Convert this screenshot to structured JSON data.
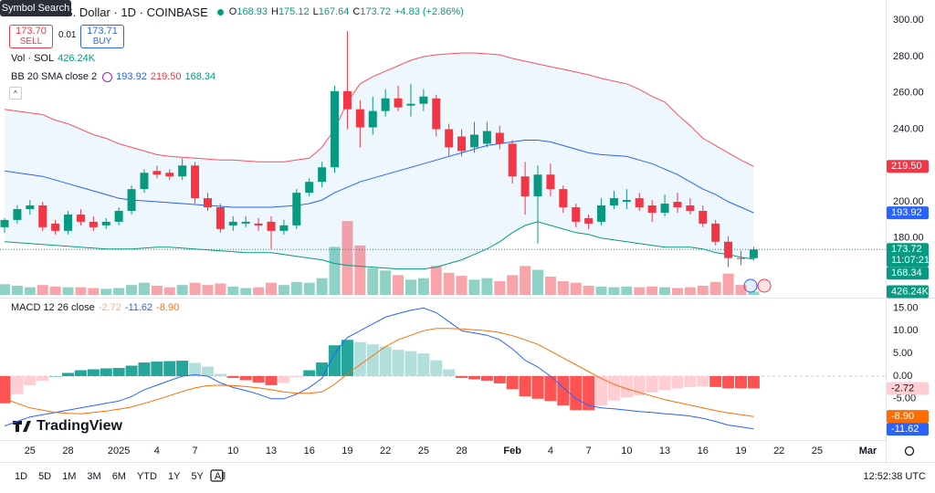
{
  "ui": {
    "symbol_search": "Symbol Search",
    "symbol": "U.S. Dollar · 1D · COINBASE",
    "ohlc_letters": [
      "O",
      "H",
      "L",
      "C"
    ],
    "change": "+4.83 (+2.86%)",
    "sell_price": "173.70",
    "sell": "SELL",
    "spread": "0.01",
    "buy_price": "173.71",
    "buy": "BUY",
    "countdown": "11:07:21",
    "logo": "TradingView",
    "ranges": [
      "1D",
      "5D",
      "1M",
      "3M",
      "6M",
      "YTD",
      "1Y",
      "5Y",
      "All"
    ],
    "clock": "12:52:38 UTC"
  },
  "chart_data": {
    "type": "candlestick",
    "categories": [
      null,
      null,
      "25",
      null,
      null,
      "28",
      null,
      null,
      null,
      "2025",
      null,
      null,
      "4",
      null,
      null,
      "7",
      null,
      null,
      "10",
      null,
      null,
      "13",
      null,
      null,
      "16",
      null,
      null,
      "19",
      null,
      null,
      "22",
      null,
      null,
      "25",
      null,
      null,
      "28",
      null,
      null,
      null,
      "Feb",
      null,
      null,
      "4",
      null,
      null,
      "7",
      null,
      null,
      "10",
      null,
      null,
      "13",
      null,
      null,
      "16",
      null,
      null,
      "19",
      null
    ],
    "future_ticks": [
      "22",
      "25",
      "Mar"
    ],
    "open": [
      186,
      190,
      196,
      198,
      188,
      184,
      193,
      189,
      187,
      189,
      195,
      207,
      217,
      216,
      214,
      220,
      202,
      197,
      187,
      188,
      188,
      189,
      184,
      187,
      205,
      211,
      219,
      261,
      251,
      241,
      250,
      257,
      253,
      254,
      257,
      240,
      236,
      230,
      232,
      238,
      232,
      214,
      203,
      215,
      207,
      197,
      191,
      189,
      198,
      200,
      202,
      198,
      194,
      200,
      198,
      195,
      188,
      178,
      169,
      168.93
    ],
    "high": [
      191,
      198,
      201,
      200,
      190,
      195,
      196,
      192,
      191,
      197,
      209,
      218,
      220,
      218,
      224,
      222,
      205,
      199,
      192,
      192,
      191,
      192,
      190,
      207,
      213,
      222,
      264,
      294,
      256,
      258,
      262,
      264,
      265,
      262,
      259,
      243,
      240,
      244,
      244,
      242,
      234,
      222,
      220,
      221,
      209,
      199,
      193,
      202,
      206,
      207,
      205,
      201,
      204,
      205,
      202,
      198,
      190,
      181,
      173,
      175.12
    ],
    "low": [
      183,
      188,
      193,
      184,
      182,
      182,
      187,
      184,
      185,
      187,
      193,
      205,
      213,
      212,
      212,
      199,
      195,
      183,
      184,
      186,
      184,
      174,
      182,
      185,
      203,
      208,
      216,
      240,
      230,
      237,
      247,
      250,
      247,
      250,
      236,
      225,
      225,
      227,
      230,
      229,
      210,
      193,
      177,
      203,
      194,
      186,
      185,
      187,
      196,
      196,
      195,
      189,
      192,
      194,
      193,
      186,
      176,
      164,
      165,
      167.64
    ],
    "close": [
      190,
      196,
      198,
      186,
      184,
      193,
      189,
      186,
      189,
      195,
      207,
      216,
      215,
      214,
      220,
      202,
      197,
      185,
      189,
      189,
      187,
      184,
      187,
      205,
      211,
      219,
      261,
      251,
      241,
      250,
      257,
      252,
      254,
      258,
      240,
      230,
      228,
      237,
      239,
      232,
      214,
      203,
      215,
      207,
      197,
      189,
      188,
      198,
      202,
      201,
      197,
      194,
      199,
      197,
      195,
      188,
      178,
      169,
      168.93,
      173.72
    ],
    "colors": {
      "up": "#089981",
      "down": "#f23645"
    },
    "ylim": [
      147.7,
      311.2
    ],
    "yticks": [
      {
        "value": 180,
        "label": "180.00"
      },
      {
        "value": 200,
        "label": "200.00"
      },
      {
        "value": 220,
        "label": "220.00"
      },
      {
        "value": 240,
        "label": "240.00"
      },
      {
        "value": 260,
        "label": "260.00"
      },
      {
        "value": 280,
        "label": "280.00"
      },
      {
        "value": 300,
        "label": "300.00"
      }
    ],
    "xlim": [
      -0.36,
      69.4
    ],
    "volume": {
      "name": "Vol · SOL",
      "ylim": [
        0,
        12000000
      ],
      "last_label": "426.24K",
      "values": [
        1400000,
        1200000,
        1000000,
        1300000,
        1100000,
        1000000,
        1000000,
        900000,
        800000,
        900000,
        1300000,
        1600000,
        1200000,
        1000000,
        1300000,
        1600000,
        1300000,
        1500000,
        1100000,
        900000,
        1000000,
        1600000,
        1300000,
        1700000,
        1600000,
        2200000,
        6300000,
        9700000,
        6500000,
        3500000,
        3200000,
        2600000,
        2000000,
        2200000,
        3800000,
        2900000,
        2500000,
        2000000,
        2200000,
        1800000,
        2600000,
        3800000,
        3300000,
        2400000,
        1800000,
        1600000,
        1200000,
        1100000,
        1000000,
        1100000,
        1000000,
        1100000,
        1000000,
        900000,
        1000000,
        1200000,
        1700000,
        2800000,
        1300000,
        426240
      ]
    },
    "bollinger": {
      "name": "BB 20 SMA close 2",
      "fill": "rgba(33,150,243,0.08)",
      "basis": {
        "color": "#2962ff",
        "values": [
          217,
          216,
          215,
          214,
          212,
          210,
          208,
          206,
          204,
          202,
          201,
          200.5,
          200,
          199.5,
          199,
          198.5,
          198,
          197.5,
          197,
          197,
          197,
          197,
          197.5,
          198,
          199,
          201,
          205,
          208,
          211,
          213,
          215,
          217,
          219,
          221,
          223,
          225,
          227,
          229,
          231,
          232,
          233,
          234,
          234,
          233,
          231,
          229,
          227,
          226,
          225.5,
          225,
          223,
          221,
          218,
          215,
          211,
          207,
          204,
          200,
          197,
          193.92
        ]
      },
      "upper": {
        "color": "#f7525f",
        "last_label": "219.50",
        "values": [
          251,
          250,
          249,
          248,
          245,
          243,
          240,
          237,
          235,
          232,
          230,
          228,
          226,
          225,
          224.5,
          224,
          223.5,
          223,
          223,
          222.5,
          222,
          222,
          222,
          223,
          224,
          230,
          240,
          255,
          265,
          269,
          272,
          275,
          278,
          280,
          281,
          281.5,
          282,
          282,
          281.5,
          281,
          279,
          277.5,
          276,
          274.5,
          273,
          271.5,
          270,
          268,
          266.5,
          265,
          262,
          258,
          255,
          248,
          242,
          235,
          231,
          227,
          223,
          219.5
        ]
      },
      "lower": {
        "color": "#089981",
        "values": [
          178,
          177.5,
          177,
          176.5,
          176,
          175.5,
          175,
          174.5,
          174,
          174,
          174,
          174.5,
          175,
          175,
          174.5,
          174,
          173.5,
          173,
          172.5,
          172,
          172,
          172,
          171,
          170,
          169,
          168,
          166,
          165,
          164.5,
          164,
          163.5,
          163,
          163,
          163,
          164,
          166,
          168,
          171,
          174,
          178,
          183,
          187,
          189,
          187,
          185,
          183,
          182,
          180,
          179,
          178,
          177,
          176,
          175,
          175,
          175,
          174,
          172,
          171,
          169.5,
          168.34
        ]
      }
    },
    "macd": {
      "name": "MACD 12 26 close",
      "ylim": [
        -14.1,
        16.9
      ],
      "yticks": [
        {
          "value": -5,
          "label": "-5.00"
        },
        {
          "value": 0,
          "label": "0.00"
        },
        {
          "value": 5,
          "label": "5.00"
        },
        {
          "value": 10,
          "label": "10.00"
        },
        {
          "value": 15,
          "label": "15.00"
        }
      ],
      "histogram": {
        "colors": [
          "#26a69a",
          "#b2dfdb",
          "#ff5252",
          "#ffcdd2"
        ],
        "values": [
          -6,
          -4,
          -2,
          -1,
          0,
          0.7,
          1.3,
          1.5,
          1.7,
          1.8,
          2.3,
          3,
          3.2,
          3.3,
          3.4,
          2.9,
          2.1,
          0.5,
          -0.4,
          -0.9,
          -1.4,
          -2,
          -1.5,
          -0.2,
          1.3,
          3,
          6.8,
          8,
          7.5,
          7,
          6.5,
          5.8,
          5.5,
          5,
          3.5,
          1.5,
          -0.4,
          -0.7,
          -1,
          -1.6,
          -2.9,
          -4.5,
          -5,
          -5.5,
          -6.5,
          -7.5,
          -7.5,
          -6.5,
          -5.4,
          -4.7,
          -4.2,
          -3.6,
          -3.1,
          -2.7,
          -2.4,
          -2.3,
          -2.4,
          -2.7,
          -2.7,
          -2.72
        ]
      },
      "macd": {
        "color": "#2962ff",
        "values": [
          -11,
          -10,
          -9,
          -8.5,
          -8,
          -7.5,
          -7,
          -6.5,
          -6,
          -5.5,
          -4.5,
          -3,
          -2,
          -1,
          0,
          0.3,
          0,
          -1.5,
          -2.5,
          -3.2,
          -4,
          -5,
          -5,
          -4,
          -2.5,
          -0.5,
          5,
          8.5,
          10,
          11.5,
          13,
          13.8,
          14.5,
          15,
          14,
          12,
          10,
          9.5,
          9,
          8,
          6,
          3.5,
          2,
          0,
          -2.5,
          -5,
          -6.5,
          -7,
          -7.2,
          -7.5,
          -7.8,
          -8,
          -8.3,
          -8.5,
          -8.8,
          -9.3,
          -10,
          -10.8,
          -11.2,
          -11.62
        ]
      },
      "signal": {
        "color": "#ff6d00",
        "last_label": "-8.90",
        "values": [
          -5,
          -6,
          -7,
          -7.5,
          -8,
          -8.2,
          -8.3,
          -8,
          -7.7,
          -7.3,
          -6.8,
          -6,
          -5.2,
          -4.3,
          -3.4,
          -2.6,
          -2.1,
          -2,
          -2.1,
          -2.3,
          -2.6,
          -3,
          -3.5,
          -3.8,
          -3.8,
          -3.5,
          -1.8,
          0.5,
          2.5,
          4.5,
          6.5,
          8,
          9,
          10,
          10.5,
          10.5,
          10.4,
          10.2,
          10,
          9.6,
          8.9,
          8,
          7,
          5.5,
          4,
          2.5,
          1,
          -0.5,
          -1.8,
          -2.8,
          -3.6,
          -4.4,
          -5.2,
          -5.8,
          -6.4,
          -7,
          -7.6,
          -8.1,
          -8.5,
          -8.9
        ]
      }
    }
  }
}
